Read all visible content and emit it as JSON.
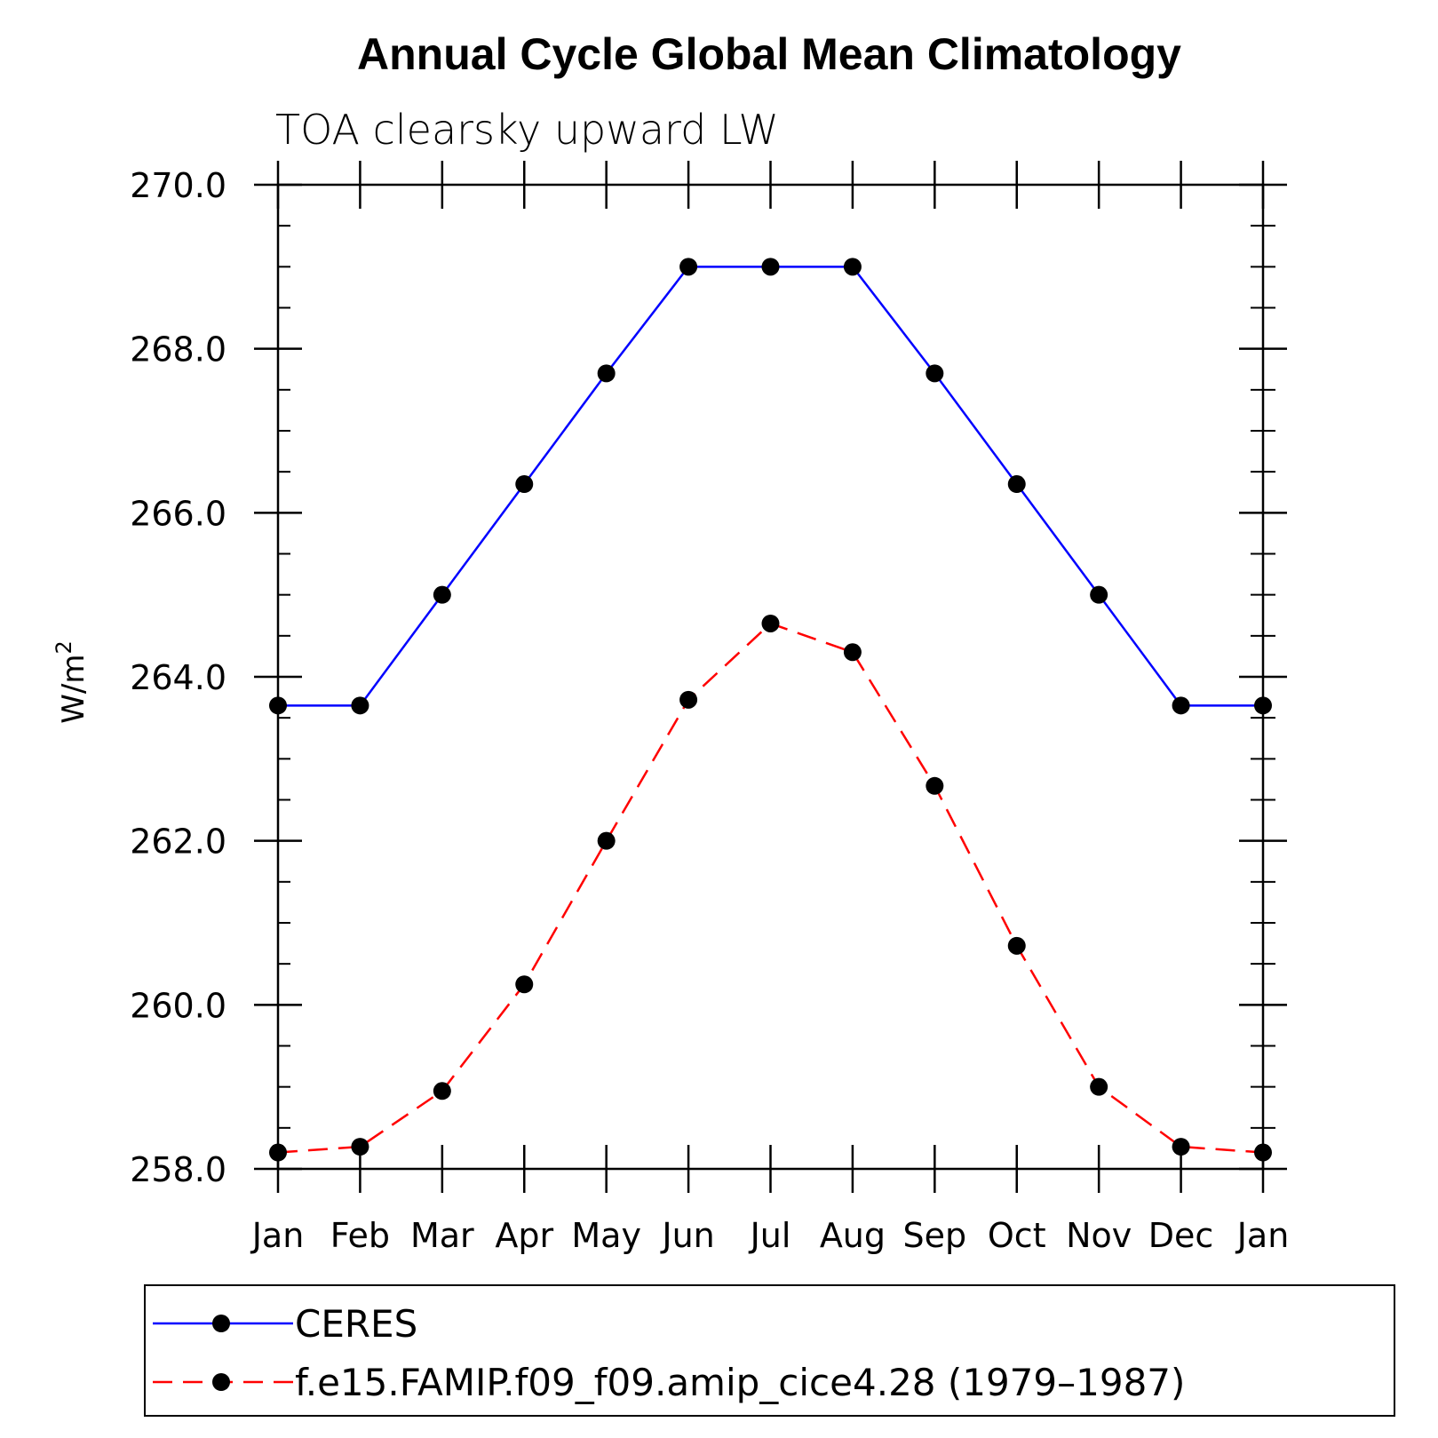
{
  "chart_data": {
    "type": "line",
    "title": "Annual Cycle Global Mean Climatology",
    "subtitle": "TOA clearsky upward LW",
    "xlabel": "",
    "ylabel": "W/m",
    "ylabel_superscript": "2",
    "categories": [
      "Jan",
      "Feb",
      "Mar",
      "Apr",
      "May",
      "Jun",
      "Jul",
      "Aug",
      "Sep",
      "Oct",
      "Nov",
      "Dec",
      "Jan"
    ],
    "ylim": [
      258.0,
      270.0
    ],
    "yticks": [
      "258.0",
      "260.0",
      "262.0",
      "264.0",
      "266.0",
      "268.0",
      "270.0"
    ],
    "series": [
      {
        "name": "CERES",
        "color": "#0000ff",
        "dash": "solid",
        "values": [
          263.65,
          263.65,
          265.0,
          266.35,
          267.7,
          269.0,
          269.0,
          269.0,
          267.7,
          266.35,
          265.0,
          263.65,
          263.65
        ]
      },
      {
        "name": "f.e15.FAMIP.f09_f09.amip_cice4.28 (1979–1987)",
        "color": "#ff0000",
        "dash": "dashed",
        "values": [
          258.2,
          258.27,
          258.95,
          260.25,
          262.0,
          263.72,
          264.65,
          264.3,
          262.67,
          260.72,
          259.0,
          258.27,
          258.2
        ]
      }
    ],
    "legend_position": "bottom",
    "grid": false
  }
}
